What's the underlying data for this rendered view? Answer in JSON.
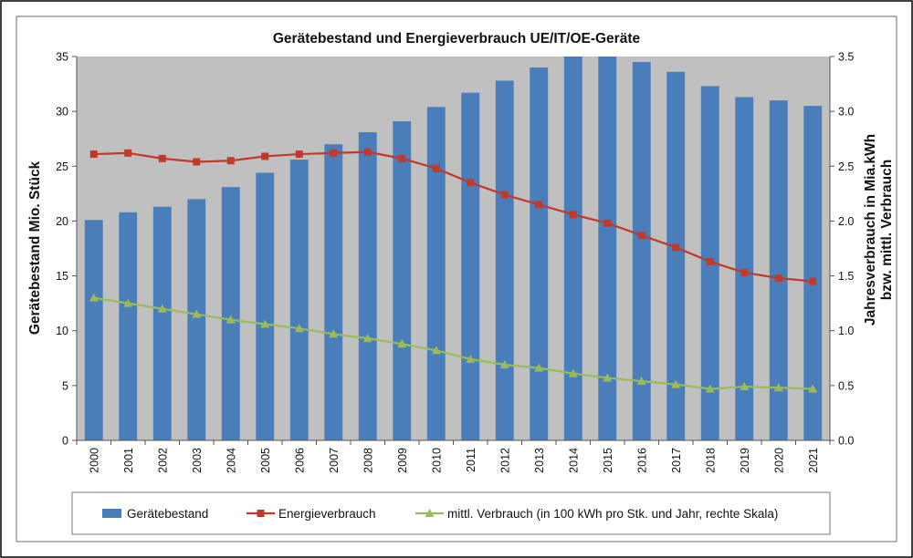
{
  "chart_data": {
    "type": "bar",
    "title": "Gerätebestand und Energieverbrauch UE/IT/OE-Geräte",
    "ylabel": "Gerätebestand Mio. Stück",
    "y2label_line1": "Jahresverbrauch in Mia.kWh",
    "y2label_line2": "bzw. mittl. Verbrauch",
    "ylim": [
      0,
      35
    ],
    "y2lim": [
      0,
      3.5
    ],
    "yticks": [
      "0",
      "5",
      "10",
      "15",
      "20",
      "25",
      "30",
      "35"
    ],
    "y2ticks": [
      "0.0",
      "0.5",
      "1.0",
      "1.5",
      "2.0",
      "2.5",
      "3.0",
      "3.5"
    ],
    "grid": false,
    "legend_position": "bottom",
    "categories": [
      "2000",
      "2001",
      "2002",
      "2003",
      "2004",
      "2005",
      "2006",
      "2007",
      "2008",
      "2009",
      "2010",
      "2011",
      "2012",
      "2013",
      "2014",
      "2015",
      "2016",
      "2017",
      "2018",
      "2019",
      "2020",
      "2021"
    ],
    "series": [
      {
        "name": "Gerätebestand",
        "kind": "bar",
        "axis": "left",
        "color": "#4a7ebb",
        "values": [
          20.1,
          20.8,
          21.3,
          22.0,
          23.1,
          24.4,
          25.6,
          27.0,
          28.1,
          29.1,
          30.4,
          31.7,
          32.8,
          34.0,
          35.0,
          35.0,
          34.5,
          33.6,
          32.3,
          31.3,
          31.0,
          30.5
        ]
      },
      {
        "name": "Energieverbrauch",
        "kind": "line",
        "marker": "square",
        "axis": "right",
        "color": "#c0392b",
        "values": [
          2.61,
          2.62,
          2.57,
          2.54,
          2.55,
          2.59,
          2.61,
          2.62,
          2.63,
          2.57,
          2.48,
          2.35,
          2.24,
          2.15,
          2.06,
          1.98,
          1.87,
          1.76,
          1.63,
          1.53,
          1.48,
          1.45
        ]
      },
      {
        "name": "mittl. Verbrauch (in 100 kWh pro Stk. und Jahr, rechte Skala)",
        "kind": "line",
        "marker": "triangle",
        "axis": "right",
        "color": "#9bbb59",
        "values": [
          1.3,
          1.25,
          1.2,
          1.15,
          1.1,
          1.06,
          1.02,
          0.97,
          0.93,
          0.88,
          0.82,
          0.74,
          0.69,
          0.66,
          0.61,
          0.57,
          0.54,
          0.51,
          0.47,
          0.49,
          0.48,
          0.47
        ]
      }
    ]
  }
}
